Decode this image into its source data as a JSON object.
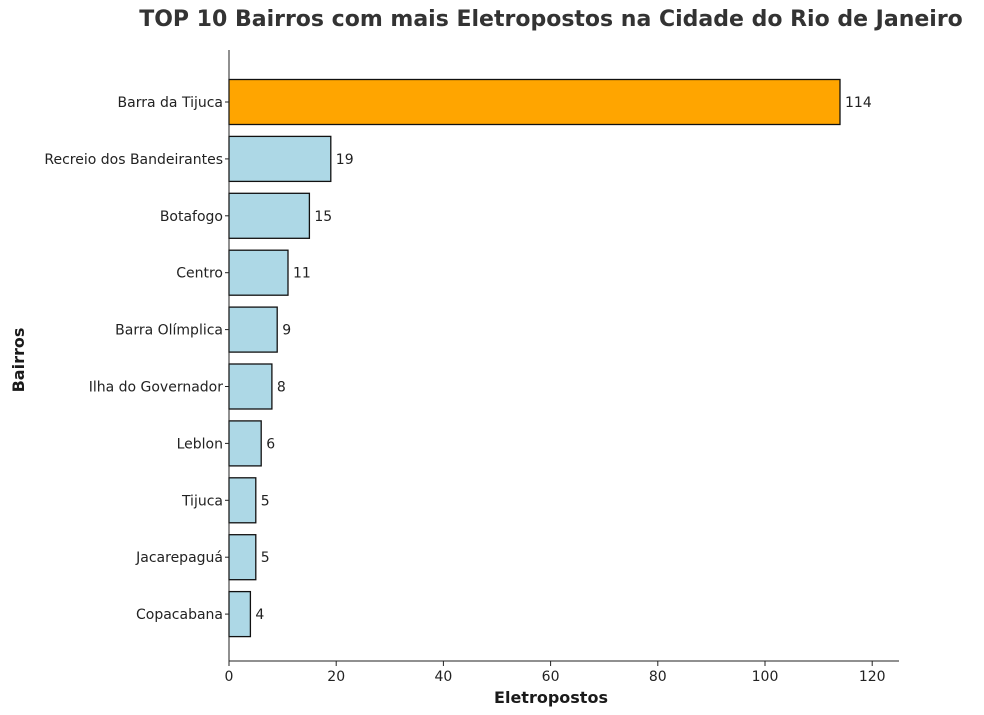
{
  "chart_data": {
    "type": "bar",
    "orientation": "horizontal",
    "title": "TOP 10 Bairros com mais Eletropostos na Cidade do Rio de Janeiro",
    "xlabel": "Eletropostos",
    "ylabel": "Bairros",
    "categories": [
      "Barra da Tijuca",
      "Recreio dos Bandeirantes",
      "Botafogo",
      "Centro",
      "Barra Olímplica",
      "Ilha do Governador",
      "Leblon",
      "Tijuca",
      "Jacarepaguá",
      "Copacabana"
    ],
    "values": [
      114,
      19,
      15,
      11,
      9,
      8,
      6,
      5,
      5,
      4
    ],
    "data_labels": [
      "114",
      "19",
      "15",
      "11",
      "9",
      "8",
      "6",
      "5",
      "5",
      "4"
    ],
    "xlim": [
      0,
      125
    ],
    "x_ticks": [
      0,
      20,
      40,
      60,
      80,
      100,
      120
    ],
    "x_tick_labels": [
      "0",
      "20",
      "40",
      "60",
      "80",
      "100",
      "120"
    ],
    "highlight_color": "#FFA500",
    "bar_color": "#ADD8E6",
    "edge_color": "#111111",
    "grid": false,
    "legend": "none"
  }
}
